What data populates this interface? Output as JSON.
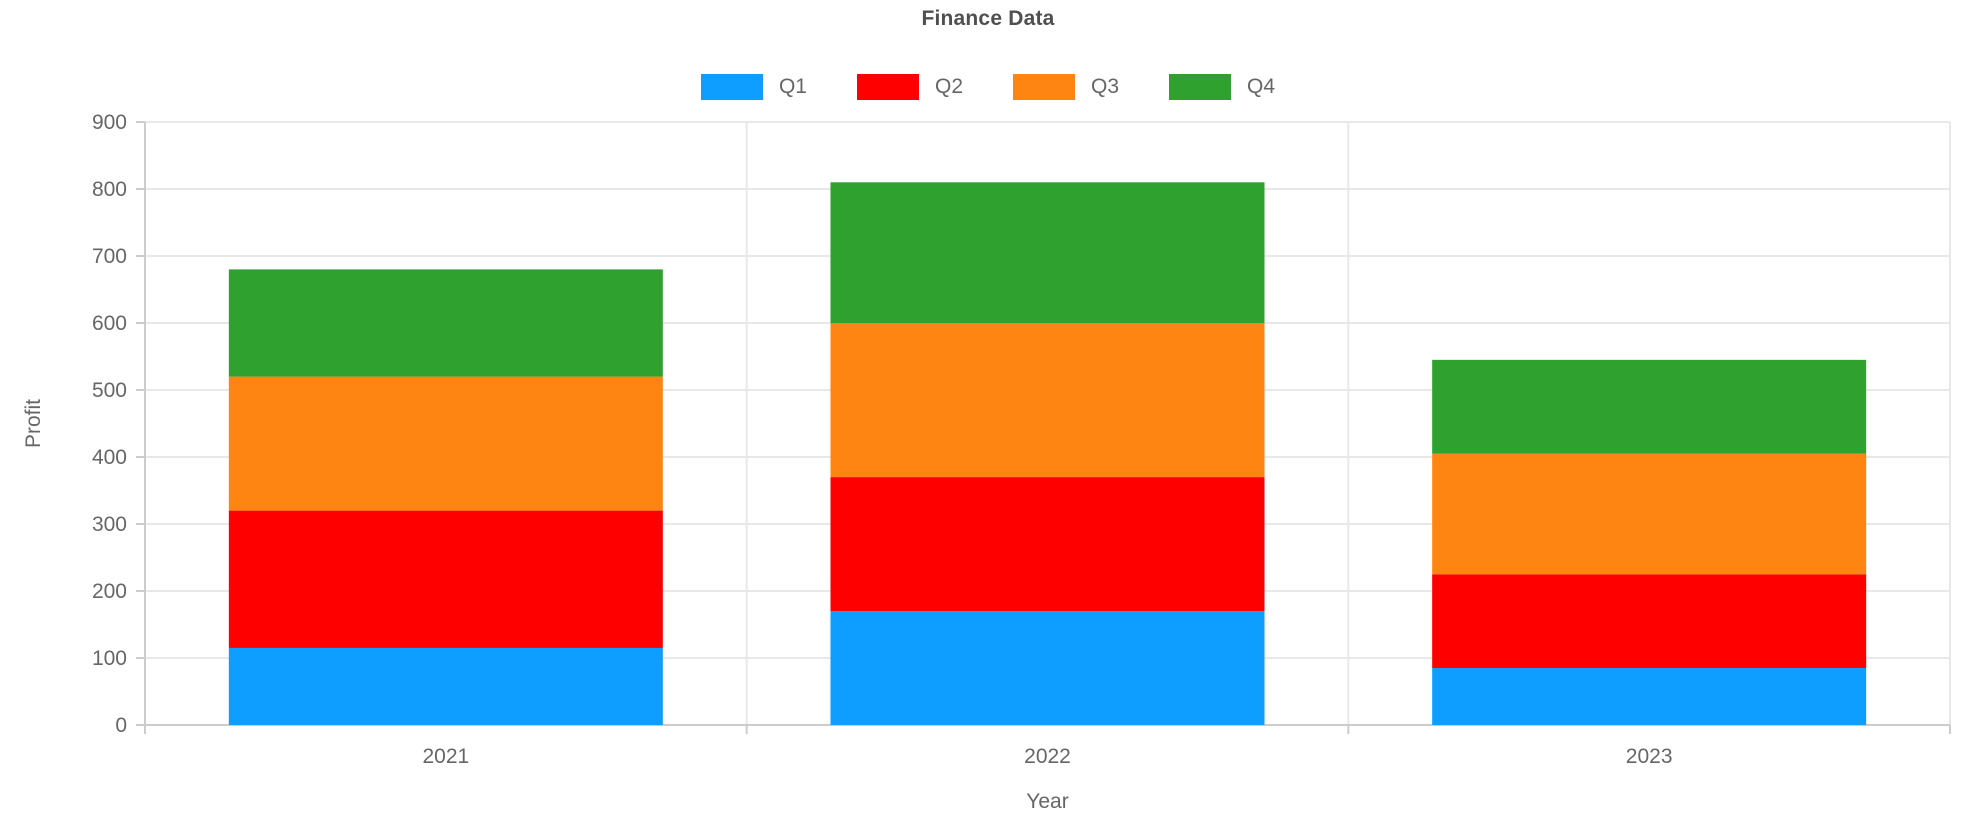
{
  "chart": {
    "title": "Finance Data"
  },
  "chart_data": {
    "type": "bar",
    "stacked": true,
    "title": "Finance Data",
    "xlabel": "Year",
    "ylabel": "Profit",
    "categories": [
      "2021",
      "2022",
      "2023"
    ],
    "series": [
      {
        "name": "Q1",
        "color": "#0d9eff",
        "values": [
          115,
          170,
          85
        ]
      },
      {
        "name": "Q2",
        "color": "#ff0000",
        "values": [
          205,
          200,
          140
        ]
      },
      {
        "name": "Q3",
        "color": "#ff8512",
        "values": [
          200,
          230,
          180
        ]
      },
      {
        "name": "Q4",
        "color": "#2fa12e",
        "values": [
          160,
          210,
          140
        ]
      }
    ],
    "totals": [
      680,
      810,
      545
    ],
    "ylim": [
      0,
      900
    ],
    "ytick_step": 100,
    "yticks": [
      0,
      100,
      200,
      300,
      400,
      500,
      600,
      700,
      800,
      900
    ],
    "legend_position": "top",
    "legend_entries": [
      "Q1",
      "Q2",
      "Q3",
      "Q4"
    ],
    "grid": true
  },
  "colors": {
    "gridline": "#e8e8e8",
    "axis": "#cccccc",
    "tick_text": "#666666",
    "axis_label_text": "#666666",
    "title_text": "#4f4f4f"
  }
}
